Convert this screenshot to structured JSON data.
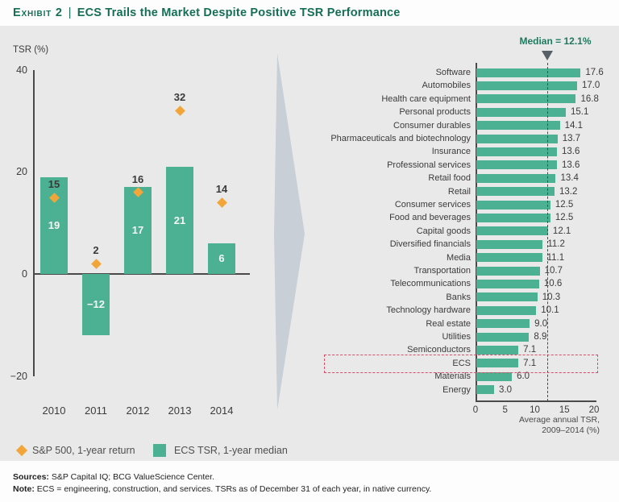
{
  "title": {
    "eyebrow": "Exhibit 2",
    "separator": "|",
    "text": "ECS Trails the Market Despite Positive TSR Performance"
  },
  "chart_data": [
    {
      "type": "bar",
      "ylabel": "TSR (%)",
      "ylim": [
        -20,
        40
      ],
      "yticks": [
        40,
        20,
        0,
        -20
      ],
      "categories": [
        "2010",
        "2011",
        "2012",
        "2013",
        "2014"
      ],
      "series": [
        {
          "name": "ECS TSR, 1-year median",
          "type": "bar",
          "values": [
            19,
            -12,
            17,
            21,
            6
          ]
        },
        {
          "name": "S&P 500, 1-year return",
          "type": "scatter",
          "marker": "diamond",
          "values": [
            15,
            2,
            16,
            32,
            14
          ]
        }
      ],
      "legend_position": "bottom",
      "grid": false
    },
    {
      "type": "bar",
      "orientation": "horizontal",
      "xlabel_line1": "Average annual TSR,",
      "xlabel_line2": "2009–2014 (%)",
      "xlim": [
        0,
        20
      ],
      "xticks": [
        0,
        5,
        10,
        15,
        20
      ],
      "median": {
        "label": "Median = 12.1%",
        "value": 12.1
      },
      "highlight_category": "ECS",
      "categories": [
        "Software",
        "Automobiles",
        "Health care equipment",
        "Personal products",
        "Consumer durables",
        "Pharmaceuticals and biotechnology",
        "Insurance",
        "Professional services",
        "Retail food",
        "Retail",
        "Consumer services",
        "Food and beverages",
        "Capital goods",
        "Diversified financials",
        "Media",
        "Transportation",
        "Telecommunications",
        "Banks",
        "Technology hardware",
        "Real estate",
        "Utilities",
        "Semiconductors",
        "ECS",
        "Materials",
        "Energy"
      ],
      "values": [
        17.6,
        17.0,
        16.8,
        15.1,
        14.1,
        13.7,
        13.6,
        13.6,
        13.4,
        13.2,
        12.5,
        12.5,
        12.1,
        11.2,
        11.1,
        10.7,
        10.6,
        10.3,
        10.1,
        9.0,
        8.9,
        7.1,
        7.1,
        6.0,
        3.0
      ],
      "grid": false
    }
  ],
  "legend": {
    "sp500_label": "S&P 500, 1-year return",
    "ecs_label": "ECS TSR, 1-year median"
  },
  "footer": {
    "sources_label": "Sources:",
    "sources_text": " S&P Capital IQ; BCG ValueScience Center.",
    "note_label": "Note:",
    "note_text": " ECS = engineering, construction, and services. TSRs as of December 31 of each year, in native currency."
  },
  "colors": {
    "bar_green": "#4bb192",
    "accent_orange": "#f2a63a",
    "title_green": "#156f55",
    "median_green": "#1e7a5f",
    "highlight_red": "#dd4b67",
    "arrow_gray": "#c9cfd6",
    "panel_bg": "#e9e9e9",
    "axis_dark": "#4a4a4a"
  }
}
